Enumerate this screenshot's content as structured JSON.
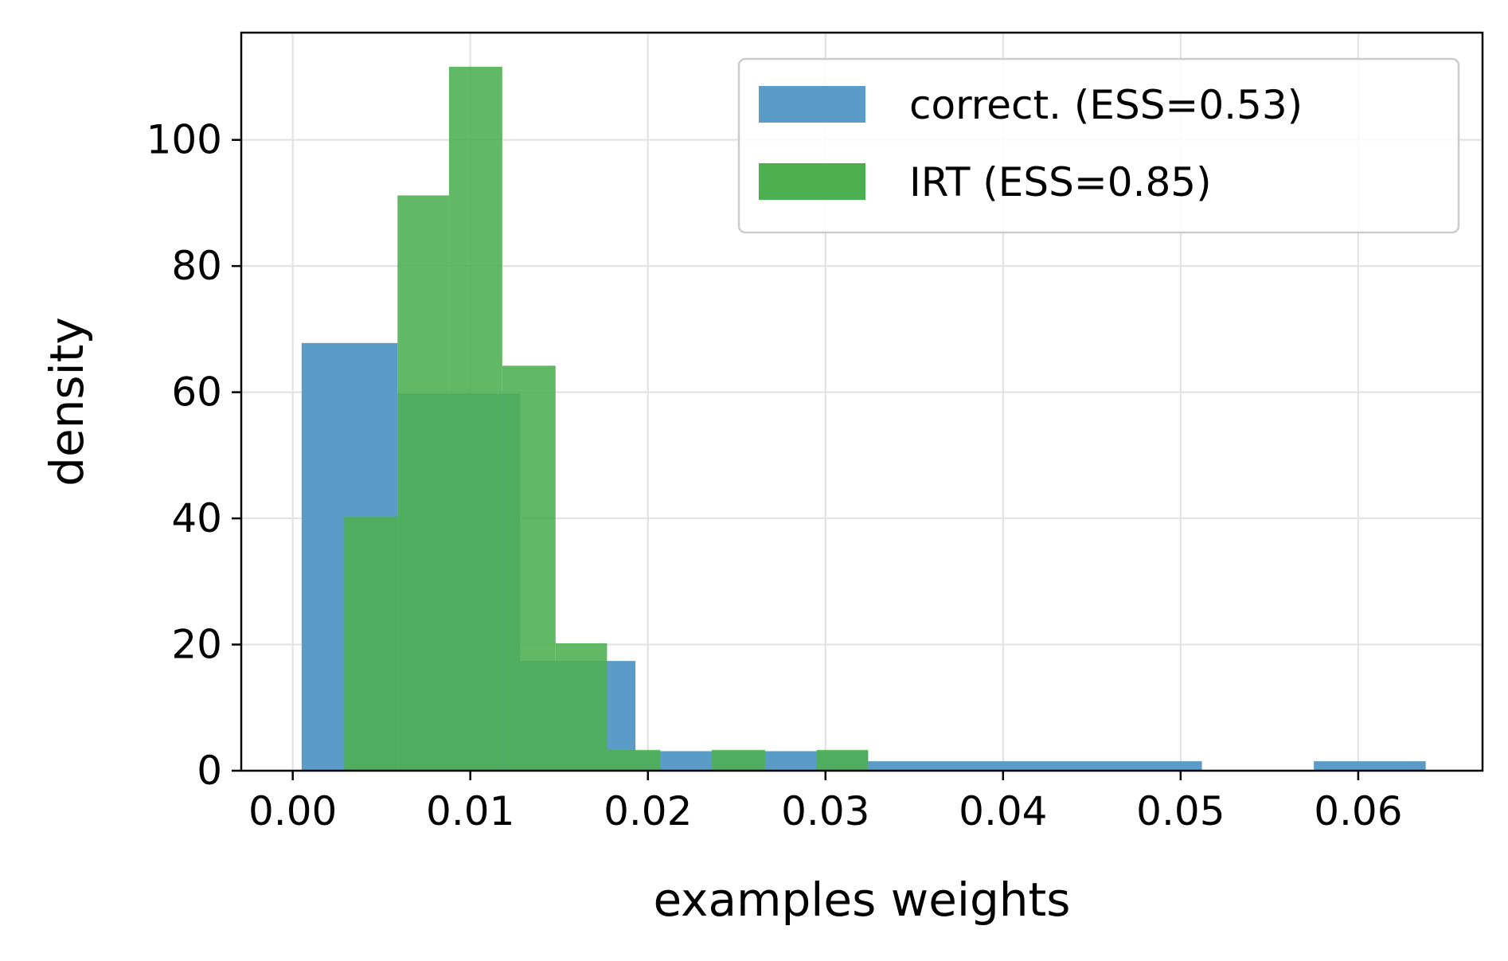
{
  "chart_data": {
    "type": "bar",
    "xlabel": "examples weights",
    "ylabel": "density",
    "xlim": [
      -0.0029,
      0.067
    ],
    "ylim": [
      0,
      117
    ],
    "xticks": [
      0.0,
      0.01,
      0.02,
      0.03,
      0.04,
      0.05,
      0.06
    ],
    "xtick_labels": [
      "0.00",
      "0.01",
      "0.02",
      "0.03",
      "0.04",
      "0.05",
      "0.06"
    ],
    "yticks": [
      0,
      20,
      40,
      60,
      80,
      100
    ],
    "ytick_labels": [
      "0",
      "20",
      "40",
      "60",
      "80",
      "100"
    ],
    "grid": true,
    "legend_position": "top-right",
    "series": [
      {
        "name": "correct. (ESS=0.53)",
        "color": "#5b9bc8",
        "bins": [
          {
            "x0": 0.0005,
            "x1": 0.0059,
            "density": 67.8
          },
          {
            "x0": 0.0059,
            "x1": 0.0128,
            "density": 59.8
          },
          {
            "x0": 0.0128,
            "x1": 0.0177,
            "density": 17.4
          },
          {
            "x0": 0.0177,
            "x1": 0.0193,
            "density": 17.4
          },
          {
            "x0": 0.0193,
            "x1": 0.0236,
            "density": 3.1
          },
          {
            "x0": 0.0236,
            "x1": 0.0266,
            "density": 3.1
          },
          {
            "x0": 0.0266,
            "x1": 0.0324,
            "density": 3.1
          },
          {
            "x0": 0.0324,
            "x1": 0.0512,
            "density": 1.5
          },
          {
            "x0": 0.0575,
            "x1": 0.0638,
            "density": 1.5
          }
        ]
      },
      {
        "name": "IRT (ESS=0.85)",
        "color": "#4caf50",
        "bins": [
          {
            "x0": 0.0029,
            "x1": 0.0059,
            "density": 40.3
          },
          {
            "x0": 0.0059,
            "x1": 0.0088,
            "density": 91.2
          },
          {
            "x0": 0.0088,
            "x1": 0.0118,
            "density": 111.6
          },
          {
            "x0": 0.0118,
            "x1": 0.0148,
            "density": 64.2
          },
          {
            "x0": 0.0148,
            "x1": 0.0177,
            "density": 20.2
          },
          {
            "x0": 0.0177,
            "x1": 0.0207,
            "density": 3.3
          },
          {
            "x0": 0.0236,
            "x1": 0.0266,
            "density": 3.3
          },
          {
            "x0": 0.0295,
            "x1": 0.0324,
            "density": 3.3
          }
        ]
      }
    ]
  }
}
